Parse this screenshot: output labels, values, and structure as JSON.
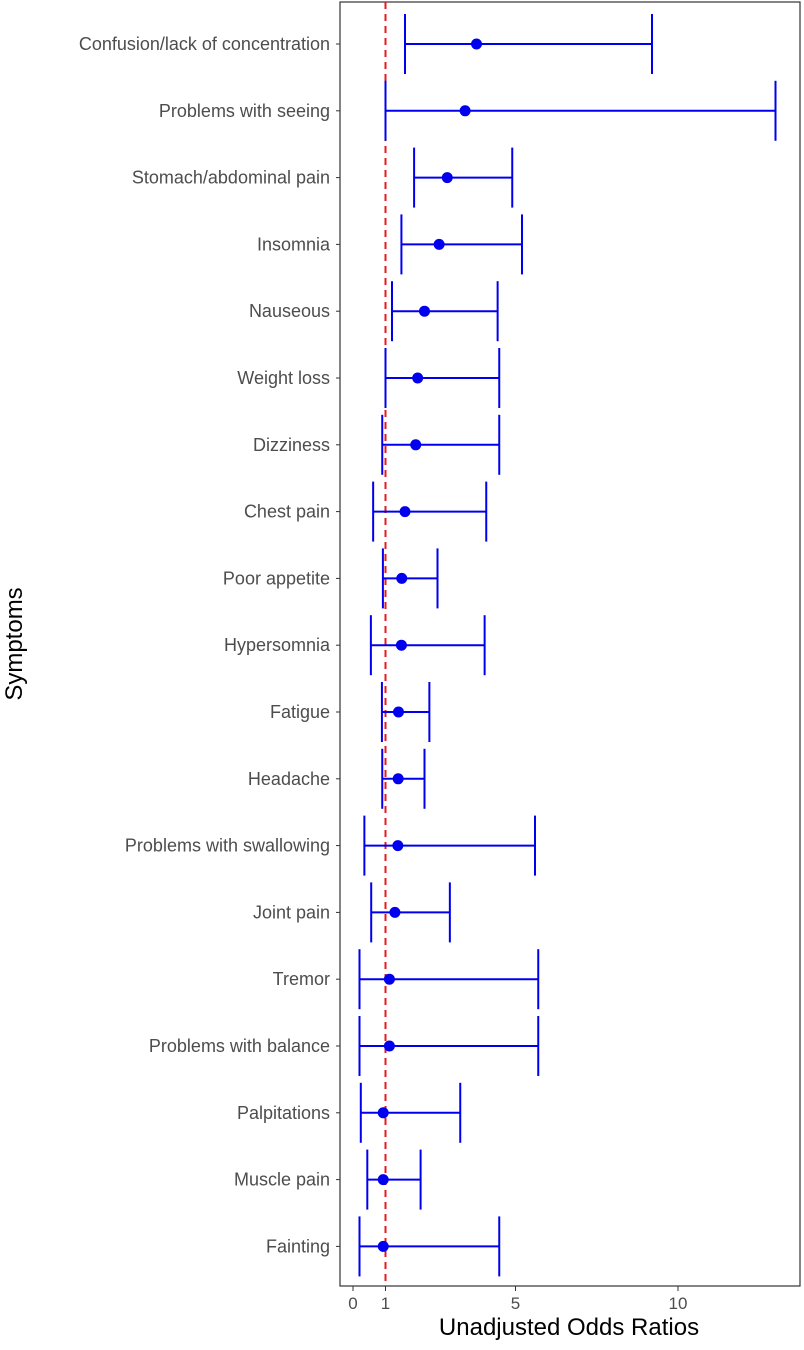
{
  "chart_data": {
    "type": "forest",
    "title": "",
    "xlabel": "Unadjusted Odds Ratios",
    "ylabel": "Symptoms",
    "xlim": [
      -0.5,
      13.5
    ],
    "xticks": [
      0,
      1,
      5,
      10
    ],
    "xtick_labels": [
      "0",
      "1",
      "5",
      "10"
    ],
    "reference_line": 1,
    "colors": {
      "series": "#0000ee",
      "reference": "#e41a1c",
      "frame": "#333333"
    },
    "categories": [
      "Confusion/lack of concentration",
      "Problems with seeing",
      "Stomach/abdominal pain",
      "Insomnia ",
      "Nauseous",
      "Weight loss",
      "Dizziness",
      "Chest pain",
      "Poor appetite",
      "Hypersomnia",
      "Fatigue",
      "Headache",
      "Problems with swallowing",
      "Joint pain",
      "Tremor",
      "Problems with balance",
      "Palpitations ",
      "Muscle pain",
      "Fainting"
    ],
    "estimates": [
      3.8,
      3.45,
      2.9,
      2.65,
      2.2,
      1.99,
      1.93,
      1.6,
      1.5,
      1.49,
      1.4,
      1.39,
      1.38,
      1.29,
      1.12,
      1.12,
      0.93,
      0.93,
      0.93
    ],
    "lower": [
      1.6,
      1.0,
      1.88,
      1.49,
      1.2,
      1.0,
      0.9,
      0.62,
      0.92,
      0.55,
      0.89,
      0.9,
      0.35,
      0.56,
      0.2,
      0.2,
      0.24,
      0.44,
      0.2
    ],
    "upper": [
      9.2,
      13.0,
      4.9,
      5.2,
      4.45,
      4.5,
      4.5,
      4.1,
      2.6,
      4.05,
      2.35,
      2.2,
      5.6,
      2.98,
      5.7,
      5.7,
      3.3,
      2.08,
      4.5
    ]
  }
}
